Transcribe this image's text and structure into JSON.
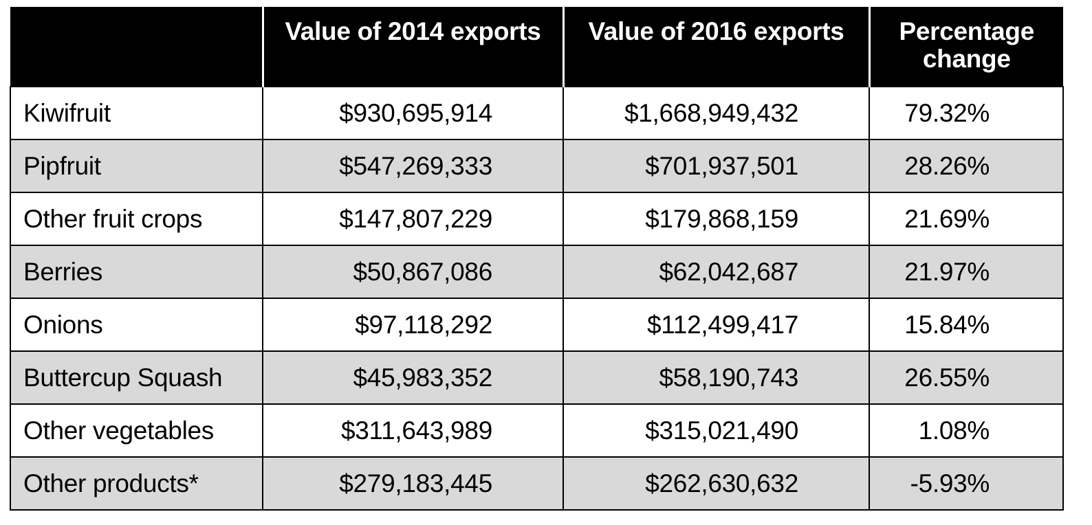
{
  "chart_data": {
    "type": "table",
    "columns": [
      "",
      "Value of 2014 exports",
      "Value of 2016 exports",
      "Percentage change"
    ],
    "rows": [
      {
        "category": "Kiwifruit",
        "v2014": "$930,695,914",
        "v2016": "$1,668,949,432",
        "change": "79.32%"
      },
      {
        "category": "Pipfruit",
        "v2014": "$547,269,333",
        "v2016": "$701,937,501",
        "change": "28.26%"
      },
      {
        "category": "Other fruit crops",
        "v2014": "$147,807,229",
        "v2016": "$179,868,159",
        "change": "21.69%"
      },
      {
        "category": "Berries",
        "v2014": "$50,867,086",
        "v2016": "$62,042,687",
        "change": "21.97%"
      },
      {
        "category": "Onions",
        "v2014": "$97,118,292",
        "v2016": "$112,499,417",
        "change": "15.84%"
      },
      {
        "category": "Buttercup Squash",
        "v2014": "$45,983,352",
        "v2016": "$58,190,743",
        "change": "26.55%"
      },
      {
        "category": "Other vegetables",
        "v2014": "$311,643,989",
        "v2016": "$315,021,490",
        "change": "1.08%"
      },
      {
        "category": "Other products*",
        "v2014": "$279,183,445",
        "v2016": "$262,630,632",
        "change": "-5.93%"
      }
    ],
    "colors": {
      "header_bg": "#000000",
      "header_text": "#ffffff",
      "row_alt_bg": "#d9d9d9",
      "row_bg": "#ffffff",
      "border": "#000000"
    }
  }
}
